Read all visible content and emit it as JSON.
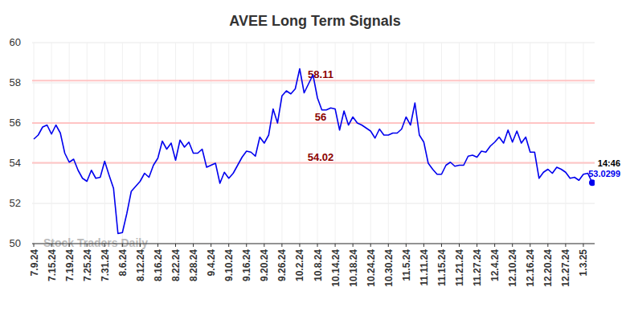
{
  "chart_data": {
    "type": "line",
    "title": "AVEE Long Term Signals",
    "watermark": "Stock Traders Daily",
    "time_label": "14:46",
    "color": "#0000ee",
    "grid": true,
    "ylim": [
      50,
      60
    ],
    "yticks": [
      50,
      52,
      54,
      56,
      58,
      60
    ],
    "categories": [
      "7.9.24",
      null,
      null,
      null,
      "7.15.24",
      null,
      null,
      null,
      "7.19.24",
      null,
      null,
      null,
      "7.25.24",
      null,
      null,
      null,
      "7.31.24",
      null,
      null,
      null,
      "8.6.24",
      null,
      null,
      null,
      "8.12.24",
      null,
      null,
      null,
      "8.16.24",
      null,
      null,
      null,
      "8.22.24",
      null,
      null,
      null,
      "8.28.24",
      null,
      null,
      null,
      "9.4.24",
      null,
      null,
      null,
      "9.10.24",
      null,
      null,
      null,
      "9.16.24",
      null,
      null,
      null,
      "9.20.24",
      null,
      null,
      null,
      "9.26.24",
      null,
      null,
      null,
      "10.2.24",
      null,
      null,
      null,
      "10.8.24",
      null,
      null,
      null,
      "10.14.24",
      null,
      null,
      null,
      "10.18.24",
      null,
      null,
      null,
      "10.24.24",
      null,
      null,
      null,
      "10.30.24",
      null,
      null,
      null,
      "11.5.24",
      null,
      null,
      null,
      "11.11.24",
      null,
      null,
      null,
      "11.15.24",
      null,
      null,
      null,
      "11.21.24",
      null,
      null,
      null,
      "11.27.24",
      null,
      null,
      null,
      "12.4.24",
      null,
      null,
      null,
      "12.10.24",
      null,
      null,
      null,
      "12.16.24",
      null,
      null,
      null,
      "12.20.24",
      null,
      null,
      null,
      "12.27.24",
      null,
      null,
      null,
      "1.3.25",
      null,
      null
    ],
    "values": [
      55.2,
      55.4,
      55.8,
      55.9,
      55.45,
      55.9,
      55.5,
      54.5,
      54.05,
      54.2,
      53.65,
      53.25,
      53.1,
      53.65,
      53.25,
      53.3,
      54.1,
      53.4,
      52.75,
      50.5,
      50.55,
      51.5,
      52.6,
      52.85,
      53.1,
      53.5,
      53.3,
      53.9,
      54.25,
      55.1,
      54.7,
      55.0,
      54.15,
      55.15,
      54.8,
      55.05,
      54.5,
      54.5,
      54.7,
      53.8,
      53.9,
      54.0,
      53.0,
      53.55,
      53.25,
      53.5,
      53.9,
      54.3,
      54.6,
      54.55,
      54.35,
      55.3,
      55.0,
      55.4,
      56.7,
      56.0,
      57.35,
      57.6,
      57.45,
      57.7,
      58.7,
      57.5,
      57.95,
      58.4,
      57.25,
      56.65,
      56.65,
      56.75,
      56.7,
      55.65,
      56.6,
      55.9,
      56.3,
      56.0,
      55.9,
      55.75,
      55.6,
      55.25,
      55.7,
      55.4,
      55.4,
      55.5,
      55.5,
      55.7,
      56.3,
      55.9,
      57.0,
      55.4,
      55.05,
      54.0,
      53.7,
      53.45,
      53.45,
      53.9,
      54.05,
      53.85,
      53.9,
      53.9,
      54.35,
      54.4,
      54.3,
      54.6,
      54.55,
      54.85,
      55.05,
      55.3,
      55.0,
      55.65,
      55.05,
      55.6,
      55.0,
      55.3,
      54.55,
      54.55,
      53.25,
      53.55,
      53.7,
      53.5,
      53.8,
      53.7,
      53.55,
      53.25,
      53.3,
      53.15,
      53.45,
      53.5,
      53.0299
    ],
    "annotations": [
      {
        "value": 58.11,
        "label": "58.11"
      },
      {
        "value": 56,
        "label": "56"
      },
      {
        "value": 54.02,
        "label": "54.02"
      }
    ]
  }
}
